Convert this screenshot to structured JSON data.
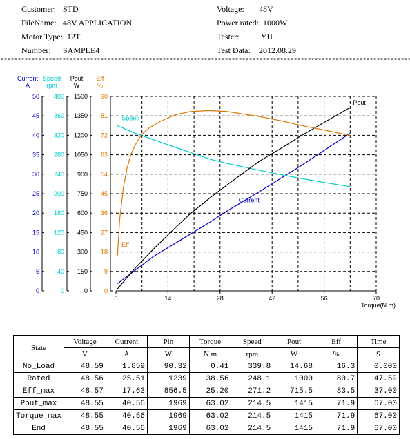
{
  "header": {
    "customer_label": "Customer:",
    "customer": "STD",
    "filename_label": "FileName:",
    "filename": "48V APPLICATION",
    "motortype_label": "Motor Type:",
    "motortype": "12T",
    "number_label": "Number:",
    "number": "SAMPLE4",
    "voltage_label": "Voltage:",
    "voltage": "48V",
    "power_label": "Power rated:",
    "power": "1000W",
    "tester_label": "Tester:",
    "tester": "YU",
    "testdata_label": "Test Data:",
    "testdata": "2012.08.29"
  },
  "separator": "****************************************************************************************************************************",
  "chart_data": {
    "type": "line",
    "xlabel": "Torque(N.m)",
    "xticks": [
      "0",
      "14",
      "28",
      "42",
      "56",
      "70"
    ],
    "xlim": [
      0,
      70
    ],
    "axes": [
      {
        "name": "Current",
        "unit": "A",
        "color": "#0000cc",
        "ticks": [
          "0",
          "5",
          "10",
          "15",
          "20",
          "25",
          "30",
          "35",
          "40",
          "45",
          "50"
        ],
        "ylim": [
          0,
          50
        ]
      },
      {
        "name": "Speed",
        "unit": "rpm",
        "color": "#00cccc",
        "ticks": [
          "0",
          "40",
          "80",
          "120",
          "160",
          "200",
          "240",
          "280",
          "320",
          "360",
          "400"
        ],
        "ylim": [
          0,
          400
        ]
      },
      {
        "name": "Pout",
        "unit": "W",
        "color": "#000000",
        "ticks": [
          "0",
          "150",
          "300",
          "450",
          "600",
          "750",
          "900",
          "1050",
          "1200",
          "1350",
          "1500"
        ],
        "ylim": [
          0,
          1500
        ]
      },
      {
        "name": "Eff",
        "unit": "%",
        "color": "#e07800",
        "ticks": [
          "0",
          "9",
          "18",
          "27",
          "36",
          "45",
          "54",
          "63",
          "72",
          "81",
          "90"
        ],
        "ylim": [
          0,
          90
        ]
      }
    ],
    "series": [
      {
        "name": "Current",
        "axis": 0,
        "color": "#0000cc",
        "x": [
          0.41,
          10,
          20,
          25.2,
          30,
          38.56,
          50,
          63.02
        ],
        "values": [
          1.859,
          8.8,
          14.6,
          17.63,
          20.6,
          25.51,
          32.3,
          40.56
        ]
      },
      {
        "name": "Speed",
        "axis": 1,
        "color": "#00cccc",
        "x": [
          0.41,
          5,
          10,
          15,
          20,
          25.2,
          30,
          38.56,
          45,
          50,
          56,
          63.02
        ],
        "values": [
          339.8,
          325,
          311,
          298,
          285,
          271.2,
          262,
          248.1,
          238,
          231,
          223,
          214.5
        ]
      },
      {
        "name": "Pout",
        "axis": 2,
        "color": "#000000",
        "x": [
          0.41,
          5,
          10,
          15,
          20,
          25.2,
          30,
          38.56,
          45,
          50,
          56,
          63.02
        ],
        "values": [
          14.68,
          170,
          320,
          460,
          595,
          715.5,
          820,
          1000,
          1110,
          1200,
          1300,
          1415
        ]
      },
      {
        "name": "Eff",
        "axis": 3,
        "color": "#e07800",
        "x": [
          0.41,
          1,
          2,
          3,
          4,
          5,
          6,
          7,
          9,
          12,
          16,
          20,
          25.2,
          30,
          38.56,
          45,
          50,
          56,
          63.02
        ],
        "values": [
          16.3,
          33,
          48,
          57,
          63,
          67,
          70,
          72.5,
          75.5,
          78.5,
          81.5,
          83,
          83.5,
          83,
          80.7,
          78.5,
          76.5,
          74.5,
          71.9
        ]
      }
    ],
    "labels": [
      {
        "text": "Speed",
        "series": "Speed",
        "color": "#00cccc"
      },
      {
        "text": "Eff",
        "series": "Eff",
        "color": "#e07800"
      },
      {
        "text": "Current",
        "series": "Current",
        "color": "#0000cc"
      },
      {
        "text": "Pout",
        "series": "Pout",
        "color": "#000000"
      }
    ],
    "grid": true,
    "table": {
      "headers": [
        "State",
        "Voltage",
        "Current",
        "Pin",
        "Torque",
        "Speed",
        "Pout",
        "Eff",
        "Time"
      ],
      "units": [
        "V",
        "A",
        "W",
        "N.m",
        "rpm",
        "W",
        "%",
        "S"
      ],
      "rows": [
        [
          "No_Load",
          "48.59",
          "1.859",
          "90.32",
          "0.41",
          "339.8",
          "14.68",
          "16.3",
          "0.000"
        ],
        [
          "Rated",
          "48.56",
          "25.51",
          "1239",
          "38.56",
          "248.1",
          "1000",
          "80.7",
          "47.59"
        ],
        [
          "Eff_max",
          "48.57",
          "17.63",
          "856.5",
          "25.20",
          "271.2",
          "715.5",
          "83.5",
          "37.00"
        ],
        [
          "Pout_max",
          "48.55",
          "40.56",
          "1969",
          "63.02",
          "214.5",
          "1415",
          "71.9",
          "67.00"
        ],
        [
          "Torque_max",
          "48.55",
          "40.56",
          "1969",
          "63.02",
          "214.5",
          "1415",
          "71.9",
          "67.00"
        ],
        [
          "End",
          "48.55",
          "40.56",
          "1969",
          "63.02",
          "214.5",
          "1415",
          "71.9",
          "67.00"
        ]
      ]
    }
  }
}
